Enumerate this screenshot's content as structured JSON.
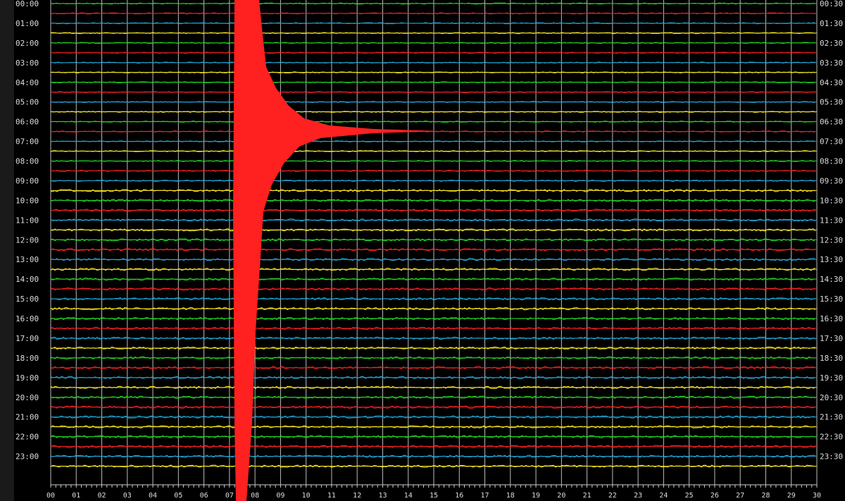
{
  "chart_data": {
    "type": "helicorder",
    "left_labels": [
      "00:00",
      "01:00",
      "02:00",
      "03:00",
      "04:00",
      "05:00",
      "06:00",
      "07:00",
      "08:00",
      "09:00",
      "10:00",
      "11:00",
      "12:00",
      "13:00",
      "14:00",
      "15:00",
      "16:00",
      "17:00",
      "18:00",
      "19:00",
      "20:00",
      "21:00",
      "22:00",
      "23:00"
    ],
    "right_labels": [
      "00:30",
      "01:30",
      "02:30",
      "03:30",
      "04:30",
      "05:30",
      "06:30",
      "07:30",
      "08:30",
      "09:30",
      "10:30",
      "11:30",
      "12:30",
      "13:30",
      "14:30",
      "15:30",
      "16:30",
      "17:30",
      "18:30",
      "19:30",
      "20:30",
      "21:30",
      "22:30",
      "23:30"
    ],
    "trace_colors": [
      "#22dd22",
      "#ff2222",
      "#22aadd",
      "#ffee22"
    ],
    "xlim": [
      0,
      30
    ],
    "xticks": [
      {
        "value": 0,
        "label": "00"
      },
      {
        "value": 1,
        "label": "01"
      },
      {
        "value": 2,
        "label": "02"
      },
      {
        "value": 3,
        "label": "03"
      },
      {
        "value": 4,
        "label": "04"
      },
      {
        "value": 5,
        "label": "05"
      },
      {
        "value": 6,
        "label": "06"
      },
      {
        "value": 7,
        "label": "07"
      },
      {
        "value": 8,
        "label": "08"
      },
      {
        "value": 9,
        "label": "09"
      },
      10,
      11,
      12,
      13,
      14,
      15,
      16,
      17,
      18,
      19,
      20,
      21,
      22,
      23,
      24,
      25,
      26,
      27,
      28,
      29,
      30
    ],
    "grid": true
  }
}
